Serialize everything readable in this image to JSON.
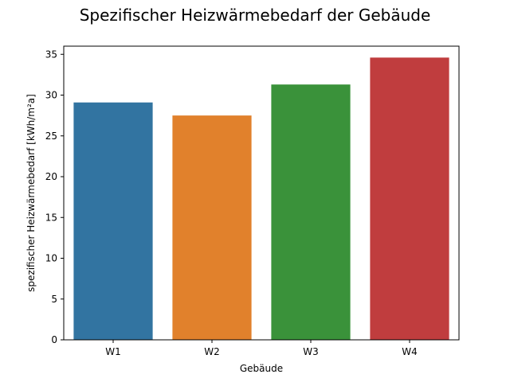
{
  "chart_data": {
    "type": "bar",
    "title": "Spezifischer Heizwärmebedarf der Gebäude",
    "xlabel": "Gebäude",
    "ylabel": "spezifischer Heizwärmebedarf [kWh/m²a]",
    "categories": [
      "W1",
      "W2",
      "W3",
      "W4"
    ],
    "values": [
      29.1,
      27.5,
      31.3,
      34.6
    ],
    "colors": [
      "#3274a1",
      "#e1812c",
      "#3a923a",
      "#c03d3e"
    ],
    "ylim": [
      0,
      36.0
    ],
    "yticks": [
      0,
      5,
      10,
      15,
      20,
      25,
      30,
      35
    ],
    "grid": false,
    "legend": "none"
  }
}
